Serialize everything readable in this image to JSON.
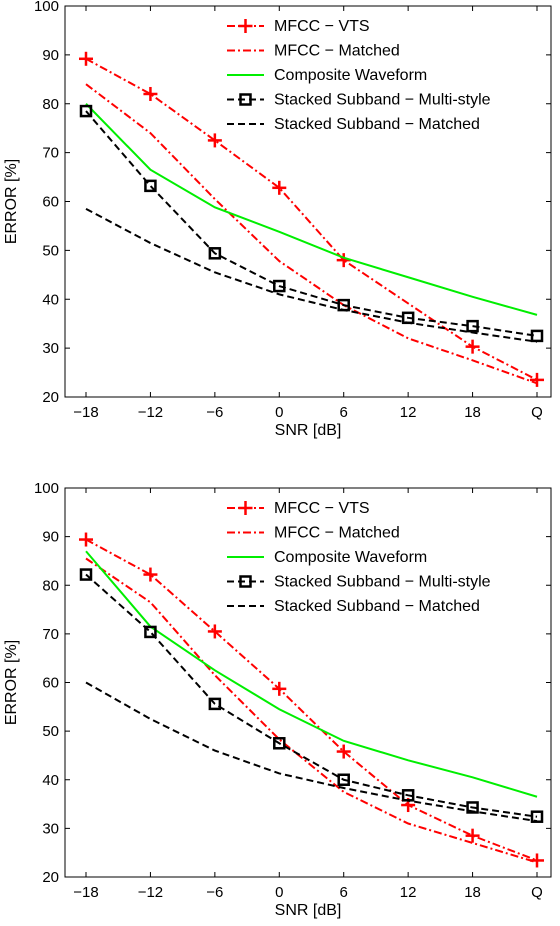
{
  "chart_data": [
    {
      "type": "line",
      "xlabel": "SNR [dB]",
      "ylabel": "ERROR [%]",
      "categories": [
        "−18",
        "−12",
        "−6",
        "0",
        "6",
        "12",
        "18",
        "Q"
      ],
      "ylim": [
        20,
        100
      ],
      "yticks": [
        20,
        30,
        40,
        50,
        60,
        70,
        80,
        90,
        100
      ],
      "grid": false,
      "legend_position": "top-right",
      "series": [
        {
          "name": "MFCC − VTS",
          "color": "#ff0000",
          "style": "dashdot",
          "marker": "plus",
          "values": [
            89.2,
            82,
            72.5,
            62.8,
            48,
            null,
            30.3,
            23.5
          ]
        },
        {
          "name": "MFCC − Matched",
          "color": "#ff0000",
          "style": "dashdot",
          "marker": "none",
          "values": [
            84,
            74,
            60.5,
            47.8,
            38.8,
            32,
            27.5,
            22.8
          ]
        },
        {
          "name": "Composite Waveform",
          "color": "#00ee00",
          "style": "solid",
          "marker": "none",
          "values": [
            80,
            66.5,
            58.8,
            53.8,
            48.5,
            44.5,
            40.5,
            36.8
          ]
        },
        {
          "name": "Stacked Subband − Multi-style",
          "color": "#000000",
          "style": "dashed",
          "marker": "square",
          "values": [
            78.5,
            63.2,
            49.4,
            42.7,
            38.8,
            36.2,
            34.5,
            32.5
          ]
        },
        {
          "name": "Stacked Subband − Matched",
          "color": "#000000",
          "style": "dashed",
          "marker": "none",
          "values": [
            58.5,
            51.5,
            45.5,
            41,
            37.8,
            35.2,
            33.2,
            31.3
          ]
        }
      ]
    },
    {
      "type": "line",
      "xlabel": "SNR [dB]",
      "ylabel": "ERROR [%]",
      "categories": [
        "−18",
        "−12",
        "−6",
        "0",
        "6",
        "12",
        "18",
        "Q"
      ],
      "ylim": [
        20,
        100
      ],
      "yticks": [
        20,
        30,
        40,
        50,
        60,
        70,
        80,
        90,
        100
      ],
      "grid": false,
      "legend_position": "top-right",
      "series": [
        {
          "name": "MFCC − VTS",
          "color": "#ff0000",
          "style": "dashdot",
          "marker": "plus",
          "values": [
            89.4,
            82.2,
            70.5,
            58.7,
            45.8,
            34.8,
            28.5,
            23.4
          ]
        },
        {
          "name": "MFCC − Matched",
          "color": "#ff0000",
          "style": "dashdot",
          "marker": "none",
          "values": [
            85.5,
            76.5,
            61.5,
            48.3,
            37.5,
            31,
            27,
            23
          ]
        },
        {
          "name": "Composite Waveform",
          "color": "#00ee00",
          "style": "solid",
          "marker": "none",
          "values": [
            87,
            71.5,
            62.5,
            54.5,
            48,
            44,
            40.5,
            36.5
          ]
        },
        {
          "name": "Stacked Subband − Multi-style",
          "color": "#000000",
          "style": "dashed",
          "marker": "square",
          "values": [
            82.2,
            70.4,
            55.6,
            47.5,
            40,
            36.8,
            34.3,
            32.4
          ]
        },
        {
          "name": "Stacked Subband − Matched",
          "color": "#000000",
          "style": "dashed",
          "marker": "none",
          "values": [
            60,
            52.5,
            46,
            41.3,
            38.3,
            35.7,
            33.5,
            31.5
          ]
        }
      ]
    }
  ]
}
